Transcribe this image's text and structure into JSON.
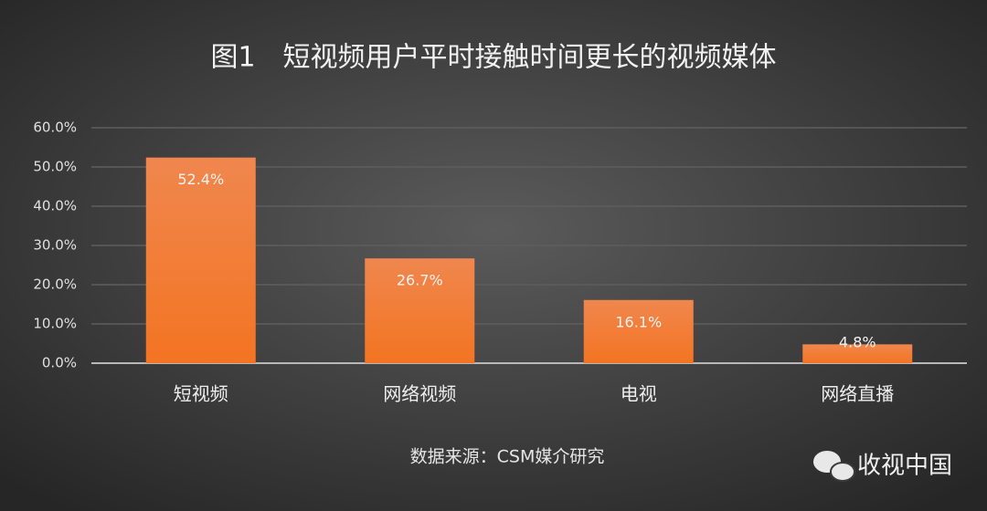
{
  "chart_data": {
    "type": "bar",
    "title": "图1　短视频用户平时接触时间更长的视频媒体",
    "categories": [
      "短视频",
      "网络视频",
      "电视",
      "网络直播"
    ],
    "values": [
      52.4,
      26.7,
      16.1,
      4.8
    ],
    "value_labels": [
      "52.4%",
      "26.7%",
      "16.1%",
      "4.8%"
    ],
    "color": "#f37422",
    "ylim": [
      0,
      60
    ],
    "yticks": [
      {
        "value": 0,
        "label": "0.0%"
      },
      {
        "value": 10,
        "label": "10.0%"
      },
      {
        "value": 20,
        "label": "20.0%"
      },
      {
        "value": 30,
        "label": "30.0%"
      },
      {
        "value": 40,
        "label": "40.0%"
      },
      {
        "value": 50,
        "label": "50.0%"
      },
      {
        "value": 60,
        "label": "60.0%"
      }
    ],
    "grid": true,
    "source": "数据来源：CSM媒介研究",
    "watermark": "收视中国"
  }
}
